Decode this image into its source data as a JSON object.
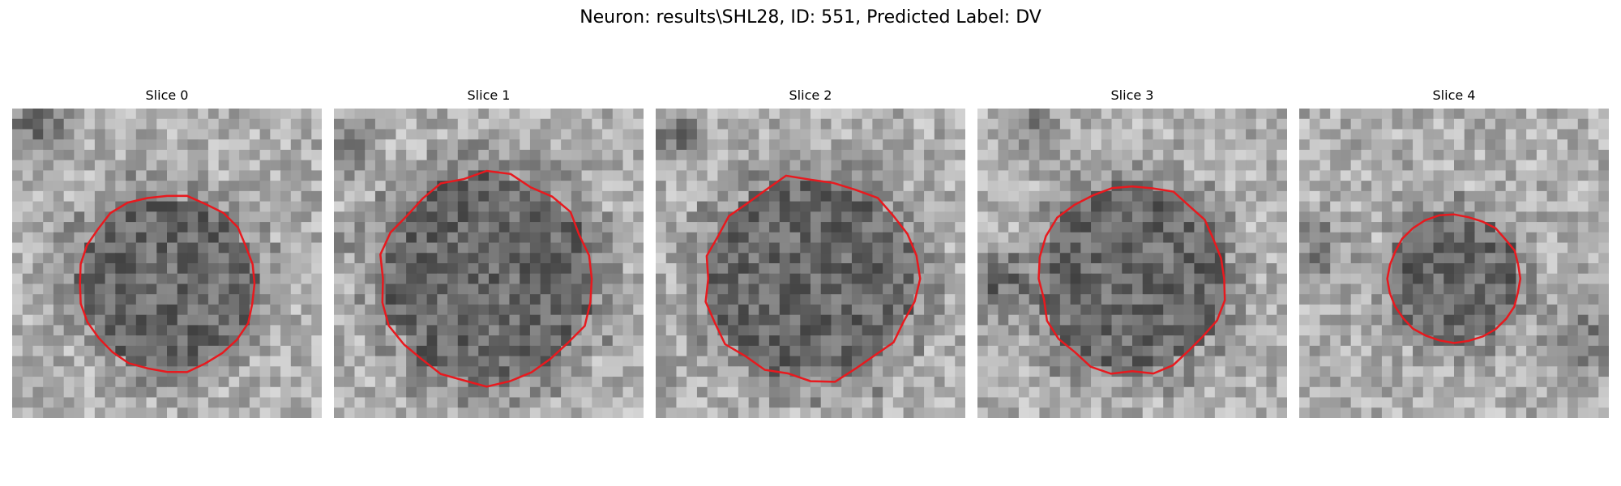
{
  "figure": {
    "title": "Neuron: results\\SHL28, ID: 551, Predicted Label: DV"
  },
  "colors": {
    "contour": "#e8191e",
    "background": "#ffffff"
  },
  "panels": [
    {
      "title": "Slice 0"
    },
    {
      "title": "Slice 1"
    },
    {
      "title": "Slice 2"
    },
    {
      "title": "Slice 3"
    },
    {
      "title": "Slice 4"
    }
  ]
}
